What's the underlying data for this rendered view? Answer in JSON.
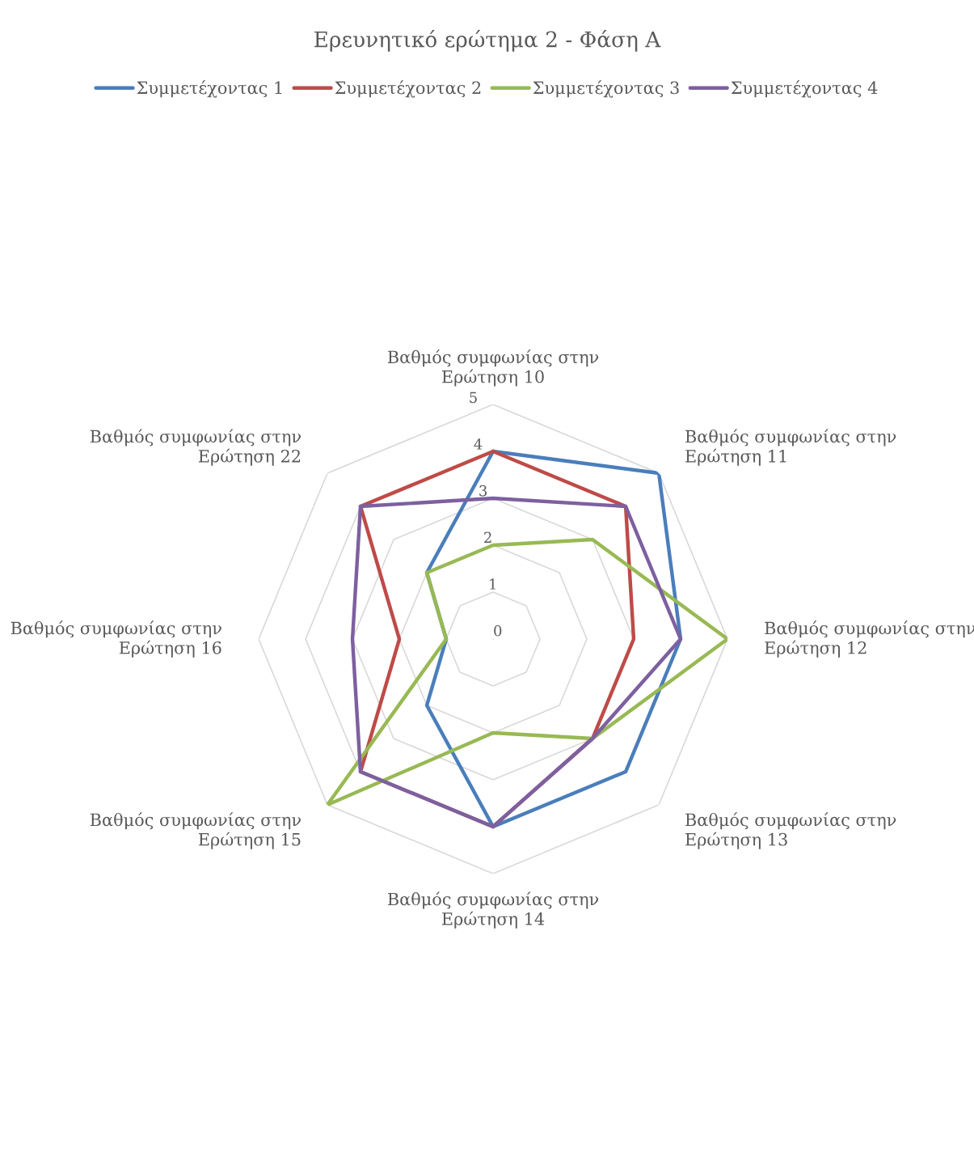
{
  "chart_data": {
    "type": "radar",
    "title": "Ερευνητικό ερώτημα 2 - Φάση Α",
    "categories": [
      "Βαθμός συμφωνίας στην\nΕρώτηση 10",
      "Βαθμός συμφωνίας στην\nΕρώτηση 11",
      "Βαθμός συμφωνίας στην\nΕρώτηση 12",
      "Βαθμός συμφωνίας στην\nΕρώτηση 13",
      "Βαθμός συμφωνίας στην\nΕρώτηση 14",
      "Βαθμός συμφωνίας στην\nΕρώτηση 15",
      "Βαθμός συμφωνίας στην\nΕρώτηση 16",
      "Βαθμός συμφωνίας στην\nΕρώτηση 22"
    ],
    "series": [
      {
        "name": "Συμμετέχοντας 1",
        "color": "#4a7ebb",
        "values": [
          4,
          5,
          4,
          4,
          4,
          2,
          1,
          2
        ]
      },
      {
        "name": "Συμμετέχοντας 2",
        "color": "#be4b48",
        "values": [
          4,
          4,
          3,
          3,
          4,
          4,
          2,
          4
        ]
      },
      {
        "name": "Συμμετέχοντας 3",
        "color": "#98b954",
        "values": [
          2,
          3,
          5,
          3,
          2,
          5,
          1,
          2
        ]
      },
      {
        "name": "Συμμετέχοντας 4",
        "color": "#7d60a0",
        "values": [
          3,
          4,
          4,
          3,
          4,
          4,
          3,
          4
        ]
      }
    ],
    "ylim": [
      0,
      5
    ],
    "yticks": [
      0,
      1,
      2,
      3,
      4,
      5
    ],
    "grid": true,
    "legend": "top",
    "marker": "none",
    "line_style": "solid"
  }
}
